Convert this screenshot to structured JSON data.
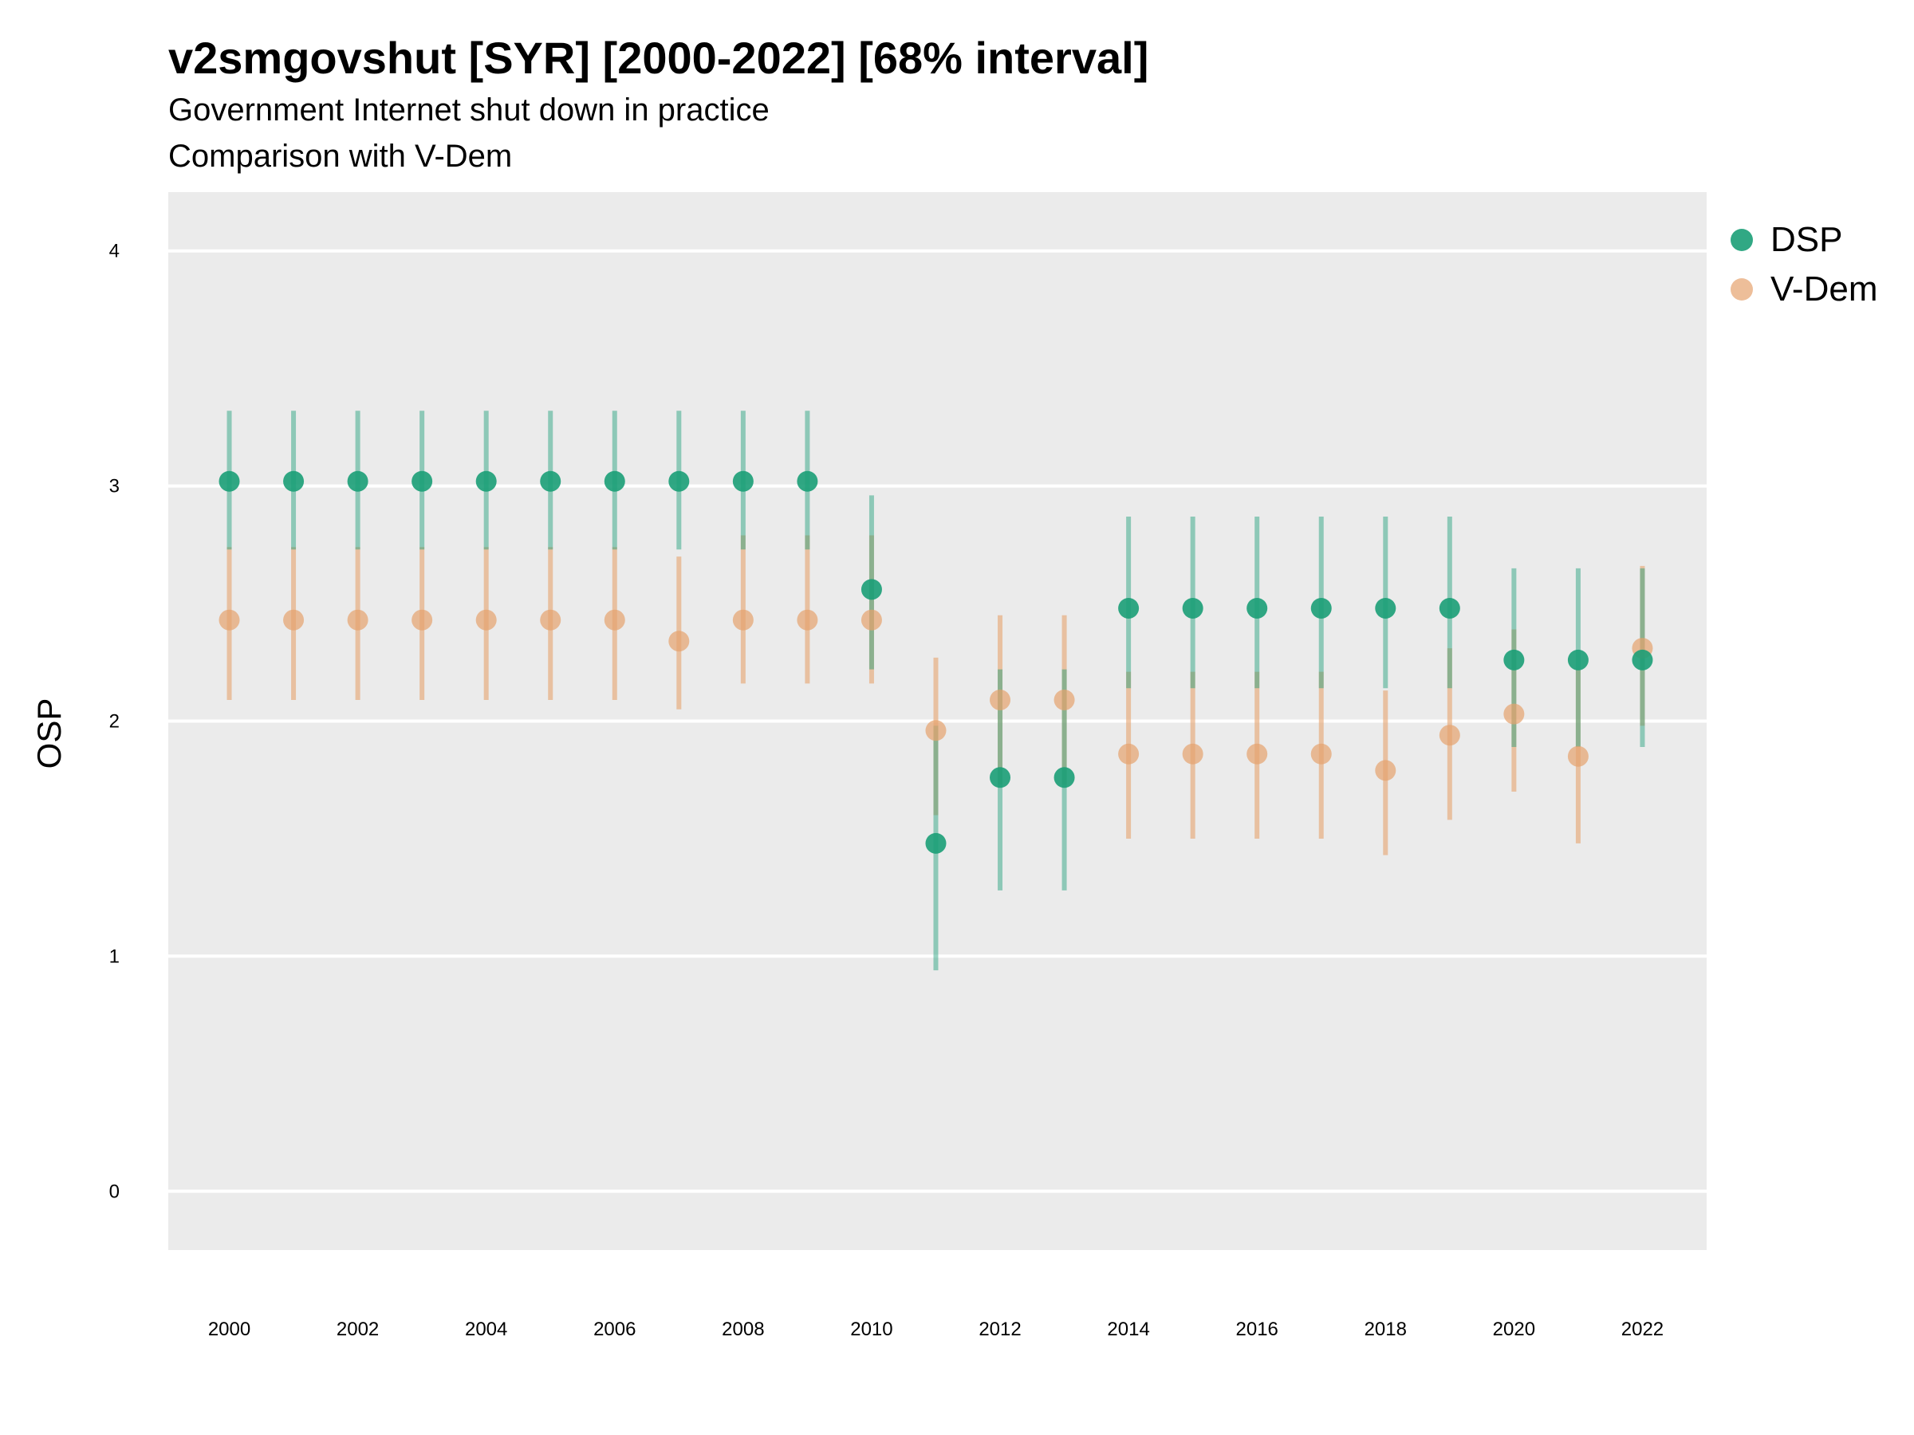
{
  "title": "v2smgovshut [SYR] [2000-2022] [68% interval]",
  "subtitle": "Government Internet shut down in practice",
  "subtitle2": "Comparison with V-Dem",
  "colors": {
    "DSP": "#1b9e77",
    "V-Dem": "#e6a36e",
    "panel": "#ebebeb",
    "grid": "#ffffff"
  },
  "legend": [
    {
      "name": "DSP",
      "color": "#1b9e77"
    },
    {
      "name": "V-Dem",
      "color": "#e6a36e"
    }
  ],
  "chart_data": {
    "type": "scatter",
    "title": "v2smgovshut [SYR] [2000-2022] [68% interval]",
    "xlabel": "",
    "ylabel": "OSP",
    "xlim": [
      1999.05,
      2023.0
    ],
    "ylim": [
      -0.25,
      4.25
    ],
    "x_ticks": [
      2000,
      2002,
      2004,
      2006,
      2008,
      2010,
      2012,
      2014,
      2016,
      2018,
      2020,
      2022
    ],
    "y_ticks": [
      0,
      1,
      2,
      3,
      4
    ],
    "grid": true,
    "legend_position": "right",
    "series": [
      {
        "name": "DSP",
        "x": [
          2000,
          2001,
          2002,
          2003,
          2004,
          2005,
          2006,
          2007,
          2008,
          2009,
          2010,
          2011,
          2012,
          2013,
          2014,
          2015,
          2016,
          2017,
          2018,
          2019,
          2020,
          2021,
          2022
        ],
        "y": [
          3.02,
          3.02,
          3.02,
          3.02,
          3.02,
          3.02,
          3.02,
          3.02,
          3.02,
          3.02,
          2.56,
          1.48,
          1.76,
          1.76,
          2.48,
          2.48,
          2.48,
          2.48,
          2.48,
          2.48,
          2.26,
          2.26,
          2.26
        ],
        "lower": [
          2.73,
          2.73,
          2.73,
          2.73,
          2.73,
          2.73,
          2.73,
          2.73,
          2.73,
          2.73,
          2.22,
          0.94,
          1.28,
          1.28,
          2.14,
          2.14,
          2.14,
          2.14,
          2.14,
          2.14,
          1.89,
          1.89,
          1.89
        ],
        "upper": [
          3.32,
          3.32,
          3.32,
          3.32,
          3.32,
          3.32,
          3.32,
          3.32,
          3.32,
          3.32,
          2.96,
          1.98,
          2.22,
          2.22,
          2.87,
          2.87,
          2.87,
          2.87,
          2.87,
          2.87,
          2.65,
          2.65,
          2.65
        ]
      },
      {
        "name": "V-Dem",
        "x": [
          2000,
          2001,
          2002,
          2003,
          2004,
          2005,
          2006,
          2007,
          2008,
          2009,
          2010,
          2011,
          2012,
          2013,
          2014,
          2015,
          2016,
          2017,
          2018,
          2019,
          2020,
          2021,
          2022
        ],
        "y": [
          2.43,
          2.43,
          2.43,
          2.43,
          2.43,
          2.43,
          2.43,
          2.34,
          2.43,
          2.43,
          2.43,
          1.96,
          2.09,
          2.09,
          1.86,
          1.86,
          1.86,
          1.86,
          1.79,
          1.94,
          2.03,
          1.85,
          2.31
        ],
        "lower": [
          2.09,
          2.09,
          2.09,
          2.09,
          2.09,
          2.09,
          2.09,
          2.05,
          2.16,
          2.16,
          2.16,
          1.6,
          1.73,
          1.73,
          1.5,
          1.5,
          1.5,
          1.5,
          1.43,
          1.58,
          1.7,
          1.48,
          1.98
        ],
        "upper": [
          2.74,
          2.74,
          2.74,
          2.74,
          2.74,
          2.74,
          2.74,
          2.7,
          2.79,
          2.79,
          2.79,
          2.27,
          2.45,
          2.45,
          2.21,
          2.21,
          2.21,
          2.21,
          2.13,
          2.31,
          2.39,
          2.22,
          2.66
        ]
      }
    ]
  }
}
